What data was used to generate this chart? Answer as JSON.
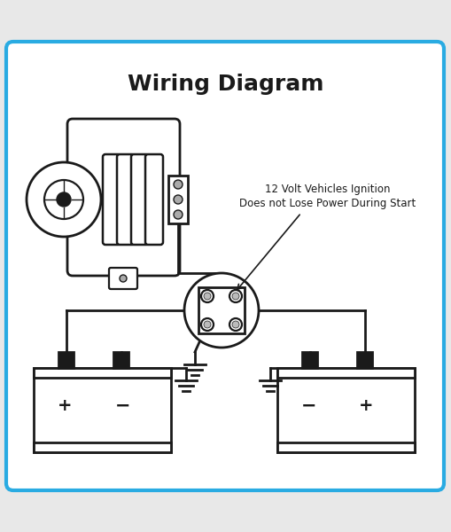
{
  "title": "Wiring Diagram",
  "title_fontsize": 18,
  "title_fontweight": "bold",
  "bg_color": "#ffffff",
  "border_color": "#29abe2",
  "border_lw": 3,
  "line_color": "#1a1a1a",
  "annotation_line1": "12 Volt Vehicles Ignition",
  "annotation_line2": "Does not Lose Power During Start",
  "annotation_fontsize": 8.5,
  "fig_bg": "#e8e8e8",
  "inner_bg": "#ffffff"
}
